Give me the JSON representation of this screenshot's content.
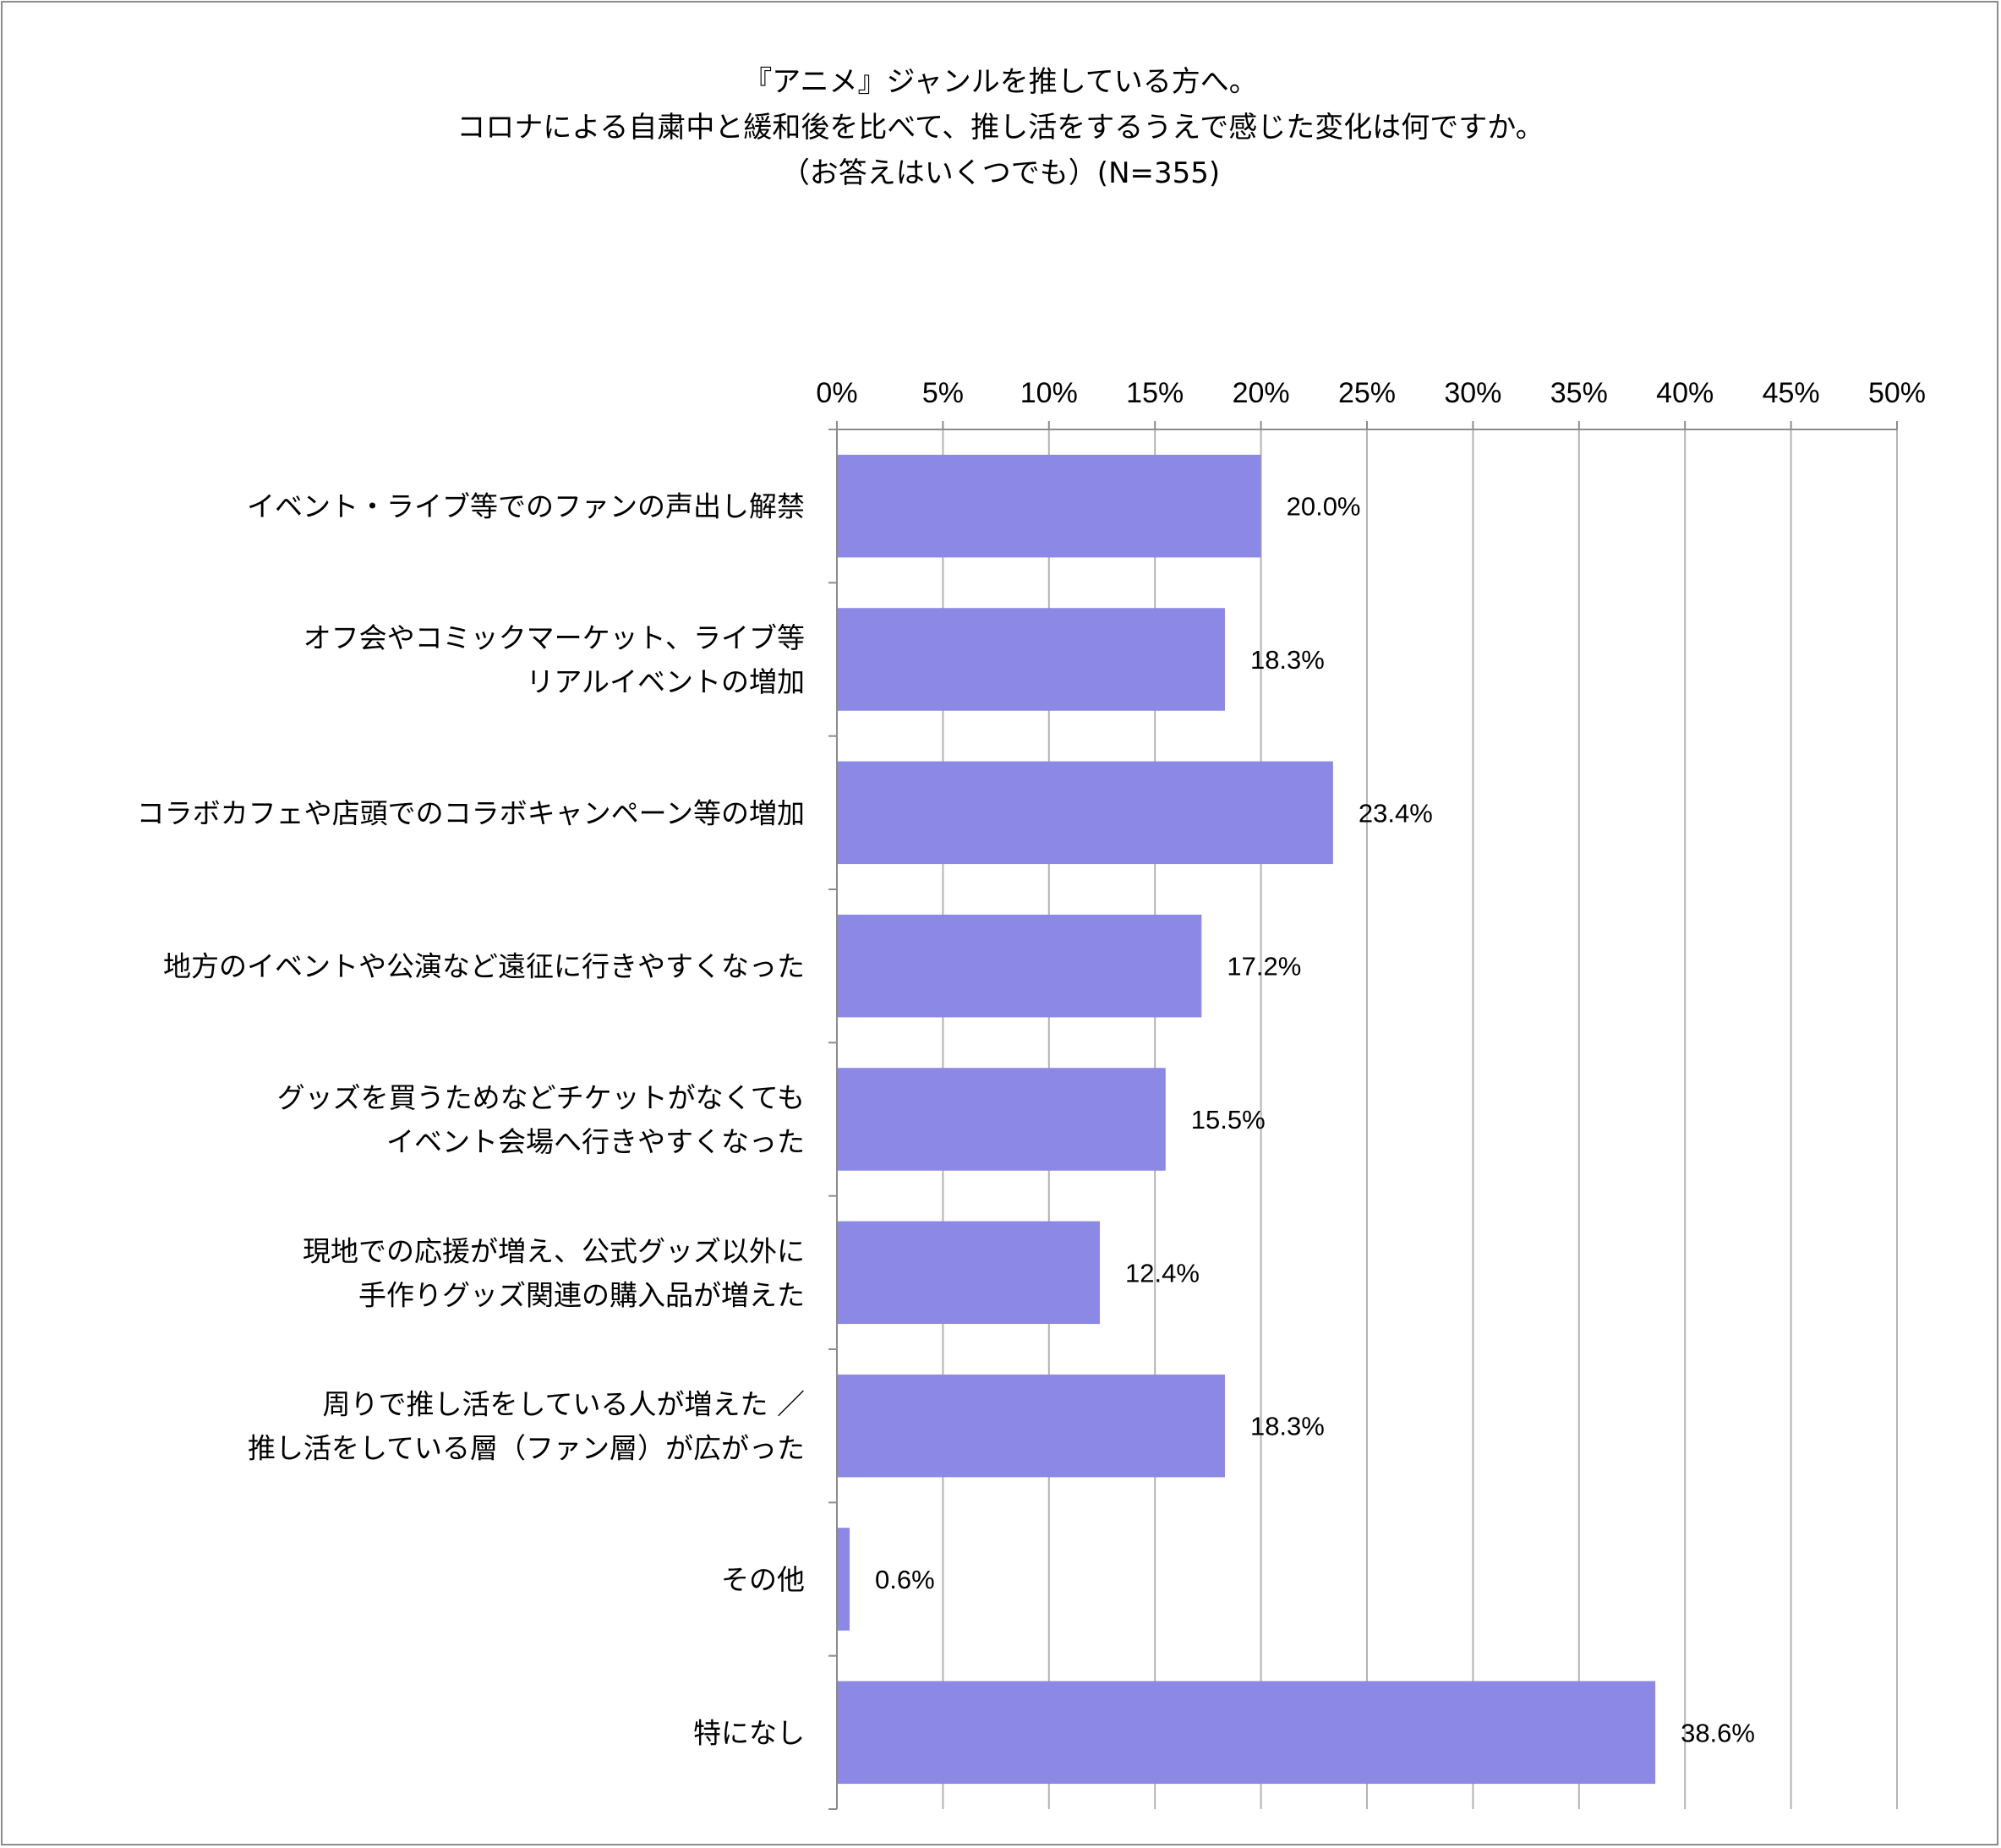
{
  "chart_data": {
    "type": "bar",
    "orientation": "horizontal",
    "title_lines": [
      "『アニメ』ジャンルを推している方へ。",
      "コロナによる自粛中と緩和後を比べて、推し活をするうえで感じた変化は何ですか。",
      "（お答えはいくつでも）(N=355)"
    ],
    "categories": [
      [
        "イベント・ライブ等でのファンの声出し解禁"
      ],
      [
        "オフ会やコミックマーケット、ライブ等",
        "リアルイベントの増加"
      ],
      [
        "コラボカフェや店頭でのコラボキャンペーン等の増加"
      ],
      [
        "地方のイベントや公演など遠征に行きやすくなった"
      ],
      [
        "グッズを買うためなどチケットがなくても",
        "イベント会場へ行きやすくなった"
      ],
      [
        "現地での応援が増え、公式グッズ以外に",
        "手作りグッズ関連の購入品が増えた"
      ],
      [
        "周りで推し活をしている人が増えた ／",
        "推し活をしている層（ファン層）が広がった"
      ],
      [
        "その他"
      ],
      [
        "特になし"
      ]
    ],
    "values": [
      20.0,
      18.3,
      23.4,
      17.2,
      15.5,
      12.4,
      18.3,
      0.6,
      38.6
    ],
    "value_labels": [
      "20.0%",
      "18.3%",
      "23.4%",
      "17.2%",
      "15.5%",
      "12.4%",
      "18.3%",
      "0.6%",
      "38.6%"
    ],
    "x_ticks": [
      "0%",
      "5%",
      "10%",
      "15%",
      "20%",
      "25%",
      "30%",
      "35%",
      "40%",
      "45%",
      "50%"
    ],
    "xlim": [
      0,
      50
    ],
    "x_axis_position": "top",
    "grid": true,
    "legend": false,
    "bar_color": "#8b88e6",
    "grid_color": "#b3b3b3",
    "frame_color": "#8c8c8c"
  }
}
